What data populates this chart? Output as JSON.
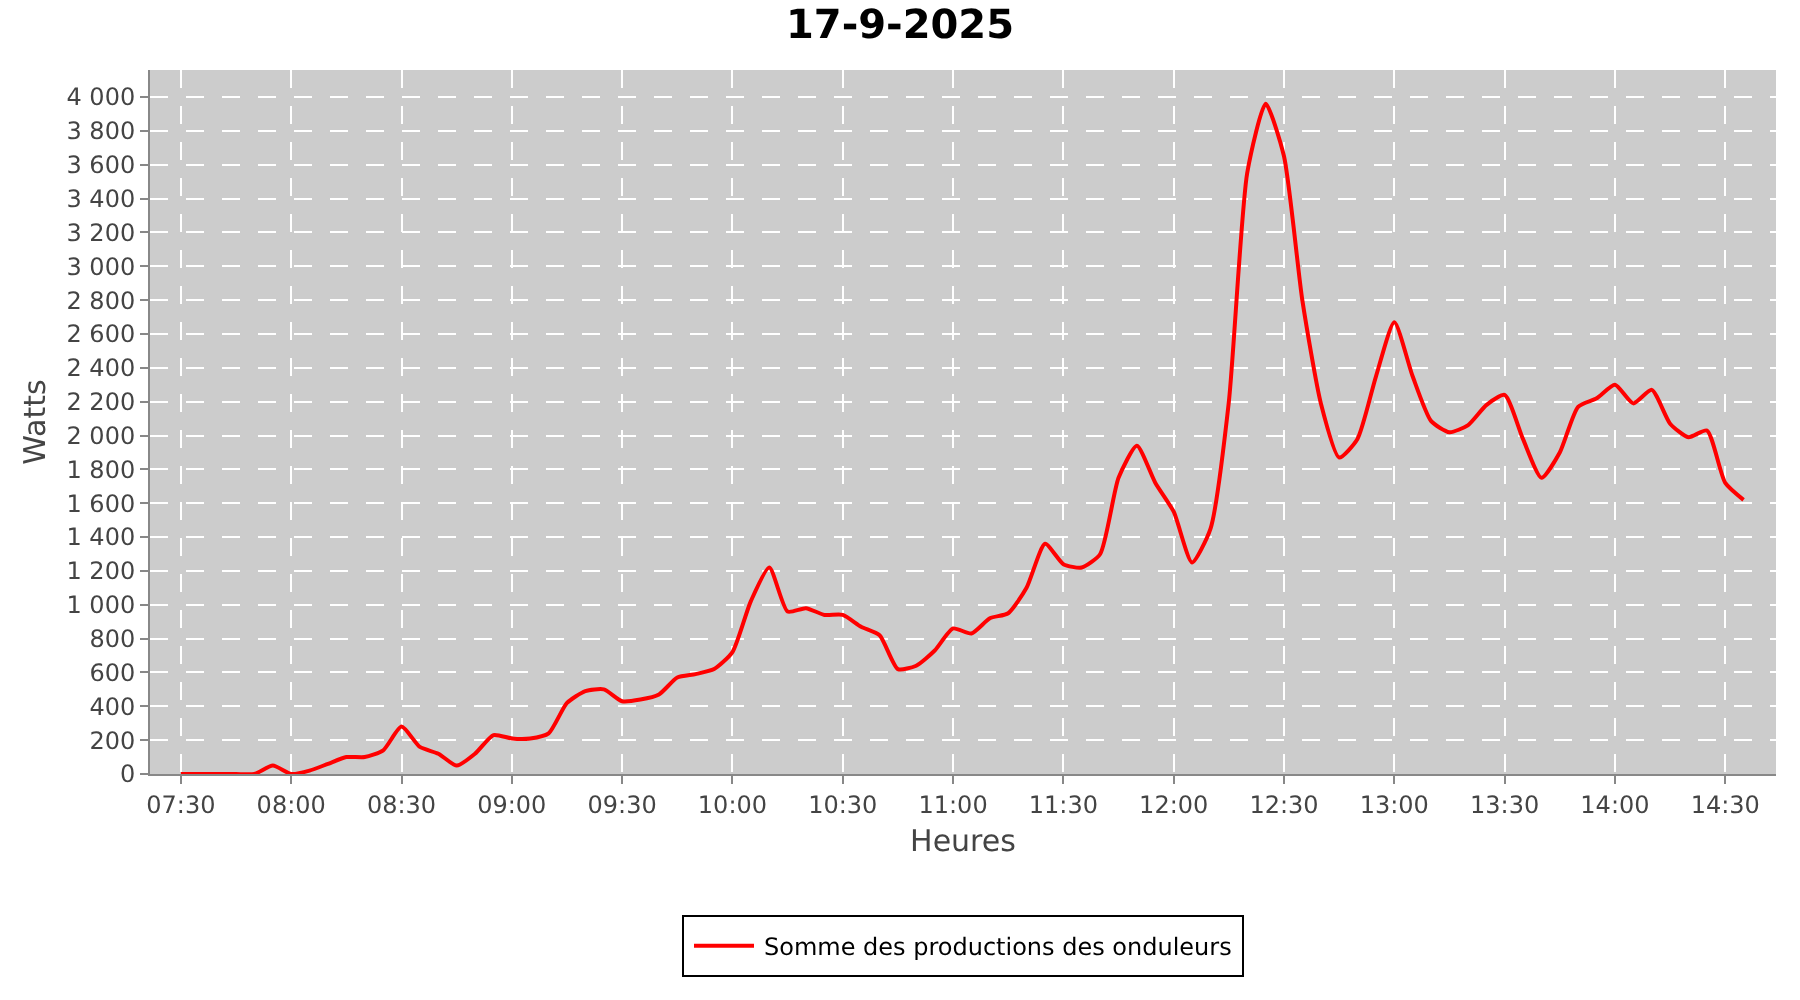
{
  "chart_data": {
    "type": "line",
    "title": "17-9-2025",
    "xlabel": "Heures",
    "ylabel": "Watts",
    "xlim": [
      7.36,
      14.73
    ],
    "xticks": [
      {
        "value": 7.5,
        "label": "07:30"
      },
      {
        "value": 8,
        "label": "08:00"
      },
      {
        "value": 8.5,
        "label": "08:30"
      },
      {
        "value": 9,
        "label": "09:00"
      },
      {
        "value": 9.5,
        "label": "09:30"
      },
      {
        "value": 10,
        "label": "10:00"
      },
      {
        "value": 10.5,
        "label": "10:30"
      },
      {
        "value": 11,
        "label": "11:00"
      },
      {
        "value": 11.5,
        "label": "11:30"
      },
      {
        "value": 12,
        "label": "12:00"
      },
      {
        "value": 12.5,
        "label": "12:30"
      },
      {
        "value": 13,
        "label": "13:00"
      },
      {
        "value": 13.5,
        "label": "13:30"
      },
      {
        "value": 14,
        "label": "14:00"
      },
      {
        "value": 14.5,
        "label": "14:30"
      }
    ],
    "ylim": [
      0,
      4160
    ],
    "yticks": [
      0,
      200,
      400,
      600,
      800,
      {
        "value": 1000,
        "label": "1 000"
      },
      {
        "value": 1200,
        "label": "1 200"
      },
      {
        "value": 1400,
        "label": "1 400"
      },
      {
        "value": 1600,
        "label": "1 600"
      },
      {
        "value": 1800,
        "label": "1 800"
      },
      {
        "value": 2000,
        "label": "2 000"
      },
      {
        "value": 2200,
        "label": "2 200"
      },
      {
        "value": 2400,
        "label": "2 400"
      },
      {
        "value": 2600,
        "label": "2 600"
      },
      {
        "value": 2800,
        "label": "2 800"
      },
      {
        "value": 3000,
        "label": "3 000"
      },
      {
        "value": 3200,
        "label": "3 200"
      },
      {
        "value": 3400,
        "label": "3 400"
      },
      {
        "value": 3600,
        "label": "3 600"
      },
      {
        "value": 3800,
        "label": "3 800"
      },
      {
        "value": 4000,
        "label": "4 000"
      }
    ],
    "x": [
      7.5,
      7.583,
      7.667,
      7.75,
      7.833,
      7.917,
      8.0,
      8.083,
      8.167,
      8.25,
      8.333,
      8.417,
      8.5,
      8.583,
      8.667,
      8.75,
      8.833,
      8.917,
      9.0,
      9.083,
      9.167,
      9.25,
      9.333,
      9.417,
      9.5,
      9.583,
      9.667,
      9.75,
      9.833,
      9.917,
      10.0,
      10.083,
      10.167,
      10.25,
      10.333,
      10.417,
      10.5,
      10.583,
      10.667,
      10.75,
      10.833,
      10.917,
      11.0,
      11.083,
      11.167,
      11.25,
      11.333,
      11.417,
      11.5,
      11.583,
      11.667,
      11.75,
      11.833,
      11.917,
      12.0,
      12.083,
      12.167,
      12.25,
      12.333,
      12.417,
      12.5,
      12.583,
      12.667,
      12.75,
      12.833,
      12.917,
      13.0,
      13.083,
      13.167,
      13.25,
      13.333,
      13.417,
      13.5,
      13.583,
      13.667,
      13.75,
      13.833,
      13.917,
      14.0,
      14.083,
      14.167,
      14.25,
      14.333,
      14.417,
      14.5,
      14.583
    ],
    "series": [
      {
        "name": "Somme des productions des onduleurs",
        "color": "#ff0000",
        "values": [
          0,
          0,
          0,
          0,
          0,
          50,
          0,
          20,
          60,
          100,
          100,
          140,
          280,
          160,
          120,
          50,
          120,
          230,
          210,
          210,
          240,
          420,
          490,
          500,
          430,
          440,
          470,
          570,
          590,
          620,
          720,
          1020,
          1220,
          960,
          980,
          940,
          940,
          870,
          820,
          620,
          640,
          730,
          860,
          830,
          920,
          950,
          1100,
          1360,
          1240,
          1220,
          1300,
          1750,
          1940,
          1720,
          1550,
          1250,
          1450,
          2200,
          3550,
          3960,
          3650,
          2800,
          2190,
          1870,
          1980,
          2350,
          2670,
          2350,
          2085,
          2020,
          2060,
          2180,
          2240,
          1980,
          1750,
          1900,
          2170,
          2220,
          2300,
          2190,
          2270,
          2070,
          1990,
          2030,
          1720,
          1620
        ]
      }
    ],
    "grid": true,
    "legend": "bottom",
    "marker": "none",
    "line_style": "solid"
  }
}
